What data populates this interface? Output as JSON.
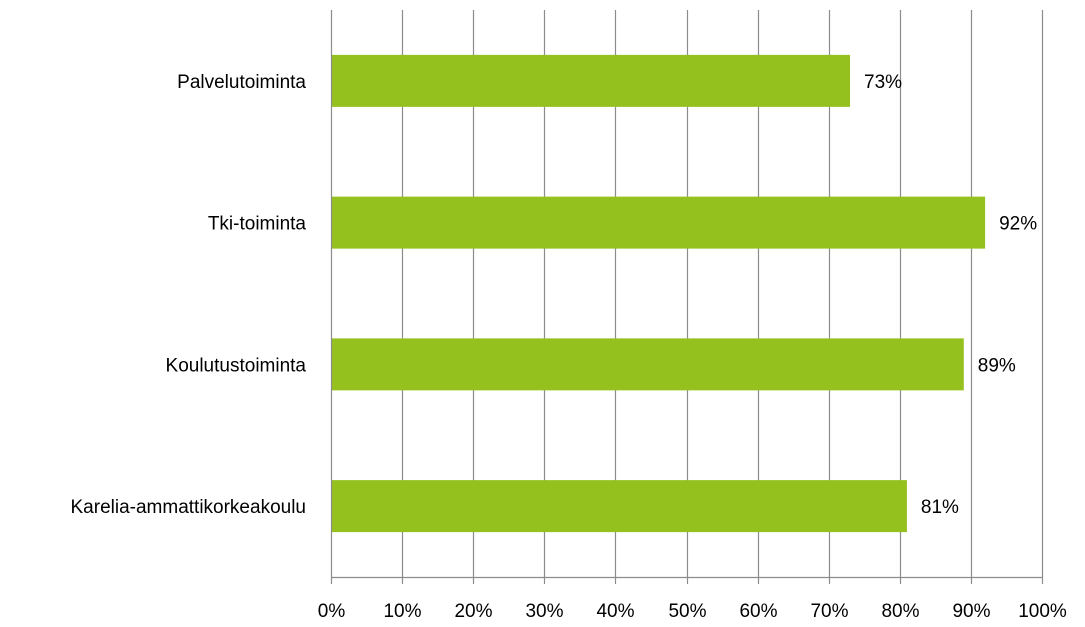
{
  "chart_data": {
    "type": "bar",
    "orientation": "horizontal",
    "categories": [
      "Palvelutoiminta",
      "Tki-toiminta",
      "Koulutustoiminta",
      "Karelia-ammattikorkeakoulu"
    ],
    "values": [
      73,
      92,
      89,
      81
    ],
    "value_labels": [
      "73%",
      "92%",
      "89%",
      "81%"
    ],
    "xlim": [
      0,
      100
    ],
    "x_ticks": [
      0,
      10,
      20,
      30,
      40,
      50,
      60,
      70,
      80,
      90,
      100
    ],
    "x_tick_labels": [
      "0%",
      "10%",
      "20%",
      "30%",
      "40%",
      "50%",
      "60%",
      "70%",
      "80%",
      "90%",
      "100%"
    ],
    "grid": "vertical",
    "legend": "none",
    "bar_color": "#95C11F",
    "title": "",
    "xlabel": "",
    "ylabel": ""
  }
}
